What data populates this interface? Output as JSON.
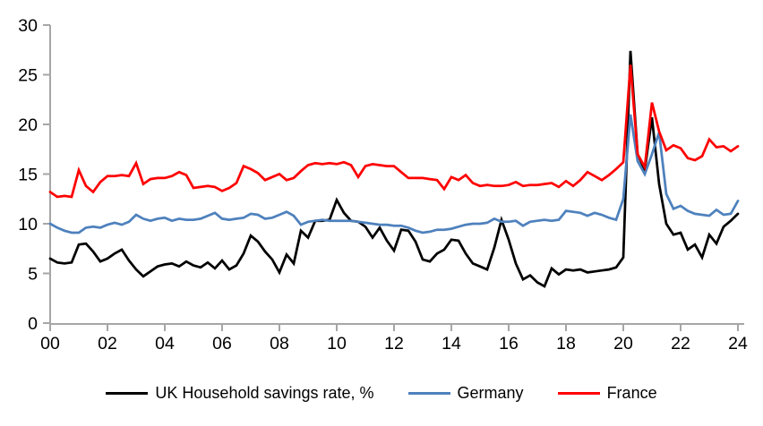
{
  "chart_data": {
    "type": "line",
    "title": "",
    "frequency": "quarterly",
    "x_start_year": 2000,
    "x_end_year": 2024,
    "x_tick_labels": [
      "00",
      "02",
      "04",
      "06",
      "08",
      "10",
      "12",
      "14",
      "16",
      "18",
      "20",
      "22",
      "24"
    ],
    "y_tick_labels": [
      "0",
      "5",
      "10",
      "15",
      "20",
      "25",
      "30"
    ],
    "y_ticks": [
      0,
      5,
      10,
      15,
      20,
      25,
      30
    ],
    "ylim": [
      0,
      30
    ],
    "grid": false,
    "legend_position": "bottom",
    "axis_color": "#A6A6A6",
    "text_color": "#000000",
    "background_color": "#FFFFFF",
    "series": [
      {
        "name": "UK Household savings rate, %",
        "color": "#000000",
        "values": [
          6.5,
          6.1,
          6.0,
          6.1,
          7.9,
          8.0,
          7.2,
          6.2,
          6.5,
          7.0,
          7.4,
          6.3,
          5.4,
          4.7,
          5.2,
          5.7,
          5.9,
          6.0,
          5.7,
          6.2,
          5.8,
          5.6,
          6.1,
          5.5,
          6.3,
          5.4,
          5.8,
          7.0,
          8.8,
          8.2,
          7.2,
          6.4,
          5.1,
          6.9,
          6.0,
          9.3,
          8.6,
          10.3,
          10.3,
          10.4,
          12.4,
          11.1,
          10.3,
          10.2,
          9.7,
          8.6,
          9.6,
          8.3,
          7.3,
          9.4,
          9.3,
          8.2,
          6.4,
          6.2,
          7.0,
          7.4,
          8.4,
          8.3,
          7.0,
          6.0,
          5.7,
          5.4,
          7.6,
          10.4,
          8.4,
          6.0,
          4.4,
          4.8,
          4.1,
          3.7,
          5.5,
          4.9,
          5.4,
          5.3,
          5.4,
          5.1,
          5.2,
          5.3,
          5.4,
          5.6,
          6.6,
          27.4,
          17.0,
          15.4,
          20.7,
          14.0,
          10.0,
          8.9,
          9.1,
          7.4,
          7.9,
          6.6,
          8.9,
          8.0,
          9.7,
          10.3,
          11.0
        ]
      },
      {
        "name": "Germany",
        "color": "#4E81BD",
        "values": [
          10.0,
          9.6,
          9.3,
          9.1,
          9.1,
          9.6,
          9.7,
          9.6,
          9.9,
          10.1,
          9.9,
          10.2,
          10.9,
          10.5,
          10.3,
          10.5,
          10.6,
          10.3,
          10.5,
          10.4,
          10.4,
          10.5,
          10.8,
          11.1,
          10.5,
          10.4,
          10.5,
          10.6,
          11.0,
          10.9,
          10.5,
          10.6,
          10.9,
          11.2,
          10.8,
          9.9,
          10.2,
          10.3,
          10.4,
          10.3,
          10.3,
          10.3,
          10.3,
          10.2,
          10.1,
          10.0,
          9.9,
          9.9,
          9.8,
          9.8,
          9.6,
          9.3,
          9.1,
          9.2,
          9.4,
          9.4,
          9.5,
          9.7,
          9.9,
          10.0,
          10.0,
          10.1,
          10.5,
          10.2,
          10.2,
          10.3,
          9.8,
          10.2,
          10.3,
          10.4,
          10.3,
          10.4,
          11.3,
          11.2,
          11.1,
          10.8,
          11.1,
          10.9,
          10.6,
          10.4,
          12.5,
          21.0,
          16.3,
          15.0,
          17.0,
          19.2,
          13.0,
          11.5,
          11.8,
          11.3,
          11.0,
          10.9,
          10.8,
          11.4,
          10.9,
          11.0,
          12.3
        ]
      },
      {
        "name": "France",
        "color": "#FF0000",
        "values": [
          13.2,
          12.7,
          12.8,
          12.7,
          15.4,
          13.8,
          13.2,
          14.2,
          14.8,
          14.8,
          14.9,
          14.8,
          16.1,
          14.0,
          14.5,
          14.6,
          14.6,
          14.8,
          15.2,
          14.9,
          13.6,
          13.7,
          13.8,
          13.7,
          13.3,
          13.6,
          14.1,
          15.8,
          15.5,
          15.1,
          14.4,
          14.7,
          15.0,
          14.4,
          14.6,
          15.3,
          15.9,
          16.1,
          16.0,
          16.1,
          16.0,
          16.2,
          15.9,
          14.7,
          15.8,
          16.0,
          15.9,
          15.8,
          15.8,
          15.2,
          14.6,
          14.6,
          14.6,
          14.5,
          14.4,
          13.5,
          14.7,
          14.4,
          14.9,
          14.1,
          13.8,
          13.9,
          13.8,
          13.8,
          13.9,
          14.2,
          13.8,
          13.9,
          13.9,
          14.0,
          14.1,
          13.7,
          14.3,
          13.8,
          14.4,
          15.2,
          14.8,
          14.4,
          14.9,
          15.5,
          16.2,
          26.0,
          17.0,
          15.7,
          22.2,
          19.3,
          17.4,
          17.9,
          17.6,
          16.6,
          16.4,
          16.8,
          18.5,
          17.7,
          17.8,
          17.3,
          17.8
        ]
      }
    ]
  },
  "legend": {
    "uk_label": "UK Household savings rate, %",
    "germany_label": "Germany",
    "france_label": "France"
  }
}
